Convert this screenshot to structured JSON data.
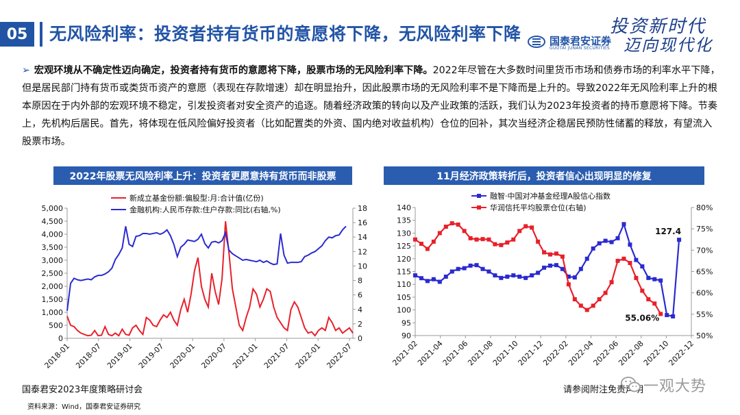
{
  "header": {
    "section_number": "05",
    "title": "无风险利率：投资者持有货币的意愿将下降，无风险利率下降",
    "logo_cn": "国泰君安证券",
    "logo_en": "GUOTAI JUNAN SECURITIES",
    "slogan_line1": "投资新时代",
    "slogan_line2": "迈向现代化"
  },
  "body": {
    "bullet": "➢",
    "lead": "宏观环境从不确定性迈向确定，投资者持有货币的意愿将下降，股票市场的无风险利率下降。",
    "text": "2022年尽管在大多数时间里货币市场和债券市场的利率水平下降，但是居民部门持有货币或类货币资产的意愿（表现在存款增速）却在明显抬升，因此股票市场的无风险利率不是下降而是上升的。导致2022年无风险利率上升的根本原因在于内外部的宏观环境不稳定，引发投资者对安全资产的追逐。随着经济政策的转向以及产业政策的活跃，我们认为2023年投资者的持币意愿将下降。节奏上，先机构后居民。首先，将体现在低风险偏好投资者（比如配置类的外资、国内绝对收益机构）仓位的回补，其次当经济企稳居民预防性储蓄的释放，有望流入股票市场。"
  },
  "footer": {
    "left": "国泰君安2023年度策略研讨会",
    "right": "请参阅附注免责声明",
    "source": "资料来源：Wind，国泰君安证券研究",
    "watermark": "一观大势"
  },
  "colors": {
    "primary": "#2254a6",
    "red": "#e8202a",
    "blue": "#2a2ad0"
  },
  "chart_data": [
    {
      "type": "line",
      "title": "2022年股票无风险利率上升：投资者更愿意持有货币而非股票",
      "x_ticks": [
        "2018-01",
        "2018-07",
        "2019-01",
        "2019-07",
        "2020-01",
        "2020-07",
        "2021-01",
        "2021-07",
        "2022-01",
        "2022-07"
      ],
      "ylim_left": [
        0,
        5000
      ],
      "y_ticks_left": [
        "0",
        "500",
        "1,000",
        "1,500",
        "2,000",
        "2,500",
        "3,000",
        "3,500",
        "4,000",
        "4,500",
        "5,000"
      ],
      "ylim_right": [
        0,
        18
      ],
      "y_ticks_right": [
        "0",
        "2",
        "4",
        "6",
        "8",
        "10",
        "12",
        "14",
        "16",
        "18"
      ],
      "series": [
        {
          "name": "新成立基金份额:偏股型:月:合计值(亿份)",
          "axis": "left",
          "color": "#e8202a",
          "values": [
            850,
            500,
            450,
            300,
            200,
            150,
            100,
            120,
            300,
            100,
            120,
            450,
            150,
            100,
            200,
            100,
            350,
            150,
            120,
            400,
            500,
            300,
            150,
            800,
            700,
            500,
            450,
            700,
            900,
            800,
            1000,
            700,
            500,
            1100,
            1500,
            1000,
            1700,
            2600,
            3100,
            2000,
            1500,
            1200,
            2500,
            1800,
            1300,
            2300,
            4500,
            3300,
            1900,
            1200,
            500,
            300,
            800,
            1200,
            1900,
            1700,
            1200,
            1500,
            1900,
            1800,
            1200,
            800,
            600,
            400,
            300,
            1100,
            1400,
            1200,
            800,
            400,
            200,
            250,
            100,
            300,
            400,
            300,
            800,
            600,
            300,
            400,
            200,
            300,
            400,
            200
          ]
        },
        {
          "name": "金融机构:人民币存款:住户存款:同比(右轴,%)",
          "axis": "right",
          "color": "#2a2ad0",
          "values": [
            3.8,
            7.6,
            8.3,
            8.1,
            8.0,
            8.1,
            8.2,
            8.1,
            8.5,
            8.7,
            8.7,
            8.9,
            9.2,
            9.7,
            10.9,
            11.6,
            12.5,
            15.5,
            13.0,
            12.7,
            14.1,
            14.2,
            14.5,
            14.5,
            14.4,
            14.5,
            14.6,
            14.4,
            14.6,
            15.0,
            14.2,
            13.0,
            11.3,
            12.6,
            13.0,
            13.6,
            13.5,
            13.4,
            13.7,
            14.4,
            13.1,
            12.5,
            13.3,
            13.4,
            13.2,
            13.5,
            14.6,
            12.2,
            11.7,
            11.4,
            11.1,
            10.8,
            10.9,
            10.8,
            10.7,
            10.6,
            10.8,
            10.5,
            10.7,
            10.4,
            10.2,
            10.3,
            14.5,
            11.5,
            10.4,
            10.5,
            10.5,
            10.5,
            10.6,
            11.3,
            11.5,
            11.8,
            12.0,
            12.4,
            12.8,
            13.5,
            14.0,
            13.9,
            14.2,
            14.3,
            15.0,
            15.5
          ]
        }
      ]
    },
    {
      "type": "line",
      "title": "11月经济政策转折后，投资者信心出现明显的修复",
      "x_ticks": [
        "2021-02",
        "2021-04",
        "2021-06",
        "2021-08",
        "2021-10",
        "2021-12",
        "2022-02",
        "2022-04",
        "2022-06",
        "2022-08",
        "2022-10",
        "2022-12"
      ],
      "ylim_left": [
        90,
        140
      ],
      "y_ticks_left": [
        "90",
        "95",
        "100",
        "105",
        "110",
        "115",
        "120",
        "125",
        "130",
        "135",
        "140"
      ],
      "ylim_right": [
        50,
        80
      ],
      "y_ticks_right": [
        "50%",
        "55%",
        "60%",
        "65%",
        "70%",
        "75%",
        "80%"
      ],
      "series": [
        {
          "name": "融智·中国对冲基金经理A股信心指数",
          "axis": "left",
          "color": "#2a2ad0",
          "marker": "square",
          "x_index": [
            0,
            1,
            2,
            3,
            4,
            5,
            6,
            7,
            8,
            9,
            10,
            11,
            12,
            13,
            14,
            15,
            16,
            17,
            18,
            19,
            20,
            21,
            22,
            23,
            24,
            25,
            26,
            27,
            28,
            29,
            30,
            31,
            32,
            33,
            34,
            35,
            36,
            37,
            38,
            39,
            40,
            41,
            42,
            43
          ],
          "values": [
            113.5,
            112.4,
            111.3,
            112.0,
            111.0,
            113.0,
            115.0,
            116.0,
            116.3,
            117.3,
            117.5,
            116.0,
            115.0,
            113.5,
            112.5,
            113.0,
            113.5,
            113.0,
            112.5,
            113.5,
            114.5,
            116.5,
            117.3,
            117.5,
            116.0,
            113.0,
            112.7,
            116.0,
            120.0,
            124.0,
            126.0,
            127.0,
            126.5,
            128.0,
            133.5,
            125.5,
            119.5,
            117.0,
            112.5,
            112.0,
            111.5,
            98.0,
            97.5,
            127.4
          ],
          "annotation": "127.4"
        },
        {
          "name": "华润信托平均股票仓位(右轴)",
          "axis": "right",
          "color": "#e8202a",
          "marker": "square",
          "x_index": [
            0,
            1,
            2,
            3,
            4,
            5,
            6,
            7,
            8,
            9,
            10,
            11,
            12,
            13,
            14,
            15,
            16,
            17,
            18,
            19,
            20,
            21,
            22,
            23,
            24,
            25,
            26,
            27,
            28,
            29,
            30,
            31,
            32,
            33,
            34,
            35,
            36,
            37,
            38,
            39,
            40
          ],
          "values": [
            72.5,
            71.5,
            70.3,
            72.0,
            74.0,
            75.5,
            76.3,
            76.0,
            74.5,
            72.8,
            72.5,
            72.6,
            72.5,
            71.4,
            71.2,
            71.8,
            72.5,
            74.5,
            75.6,
            75.3,
            72.0,
            69.5,
            69.0,
            69.2,
            68.5,
            62.0,
            58.5,
            57.0,
            56.0,
            57.0,
            58.5,
            60.0,
            62.5,
            67.5,
            68.0,
            67.0,
            63.5,
            60.5,
            58.5,
            57.5,
            55.06
          ],
          "annotation": "55.06%"
        }
      ]
    }
  ]
}
